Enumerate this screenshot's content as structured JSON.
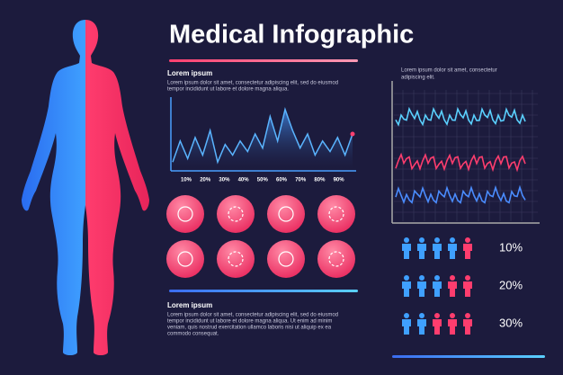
{
  "title": "Medical Infographic",
  "text_top": {
    "heading": "Lorem ipsum",
    "lines": [
      "Lorem ipsum dolor sit amet, consectetur adipiscing elit, sed do eiusmod",
      "tempor incididunt ut labore et dolore magna aliqua."
    ]
  },
  "text_right": {
    "lines": [
      "Lorem ipsum dolor sit amet, consectetur",
      "adipiscing elit."
    ]
  },
  "text_bottom": {
    "heading": "Lorem ipsum",
    "lines": [
      "Lorem ipsum dolor sit amet, consectetur adipiscing elit, sed do eiusmod",
      "tempor incididunt ut labore et dolore magna aliqua. Ut enim ad minim",
      "veniam, quis nostrud exercitation ullamco laboris nisi ut aliquip ex ea",
      "commodo consequat."
    ]
  },
  "area_chart": {
    "ylim": [
      0,
      100
    ],
    "xticks": [
      "10%",
      "20%",
      "30%",
      "40%",
      "50%",
      "60%",
      "70%",
      "80%",
      "90%"
    ],
    "values": [
      10,
      40,
      15,
      45,
      20,
      55,
      10,
      35,
      20,
      40,
      25,
      50,
      30,
      75,
      40,
      85,
      55,
      30,
      50,
      20,
      40,
      25,
      45,
      20,
      50
    ]
  },
  "people_rows": [
    {
      "value": 10,
      "label": "10%",
      "highlighted": 1
    },
    {
      "value": 20,
      "label": "20%",
      "highlighted": 2
    },
    {
      "value": 30,
      "label": "30%",
      "highlighted": 3
    }
  ]
}
